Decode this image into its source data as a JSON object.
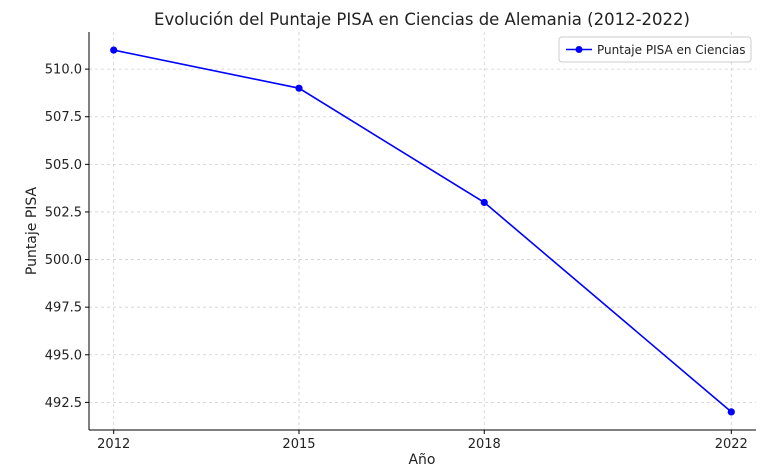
{
  "chart_data": {
    "type": "line",
    "title": "Evolución del Puntaje PISA en Ciencias de Alemania (2012-2022)",
    "xlabel": "Año",
    "ylabel": "Puntaje PISA",
    "x": [
      2012,
      2015,
      2018,
      2022
    ],
    "series": [
      {
        "name": "Puntaje PISA en Ciencias",
        "values": [
          511,
          509,
          503,
          492
        ],
        "color": "#0000ff",
        "marker": "circle"
      }
    ],
    "xlim": [
      2011.6,
      2022.4
    ],
    "ylim": [
      491.05,
      511.95
    ],
    "xticks": [
      2012,
      2015,
      2018,
      2022
    ],
    "yticks": [
      492.5,
      495.0,
      497.5,
      500.0,
      502.5,
      505.0,
      507.5,
      510.0
    ],
    "grid": true,
    "legend_position": "top-right"
  }
}
